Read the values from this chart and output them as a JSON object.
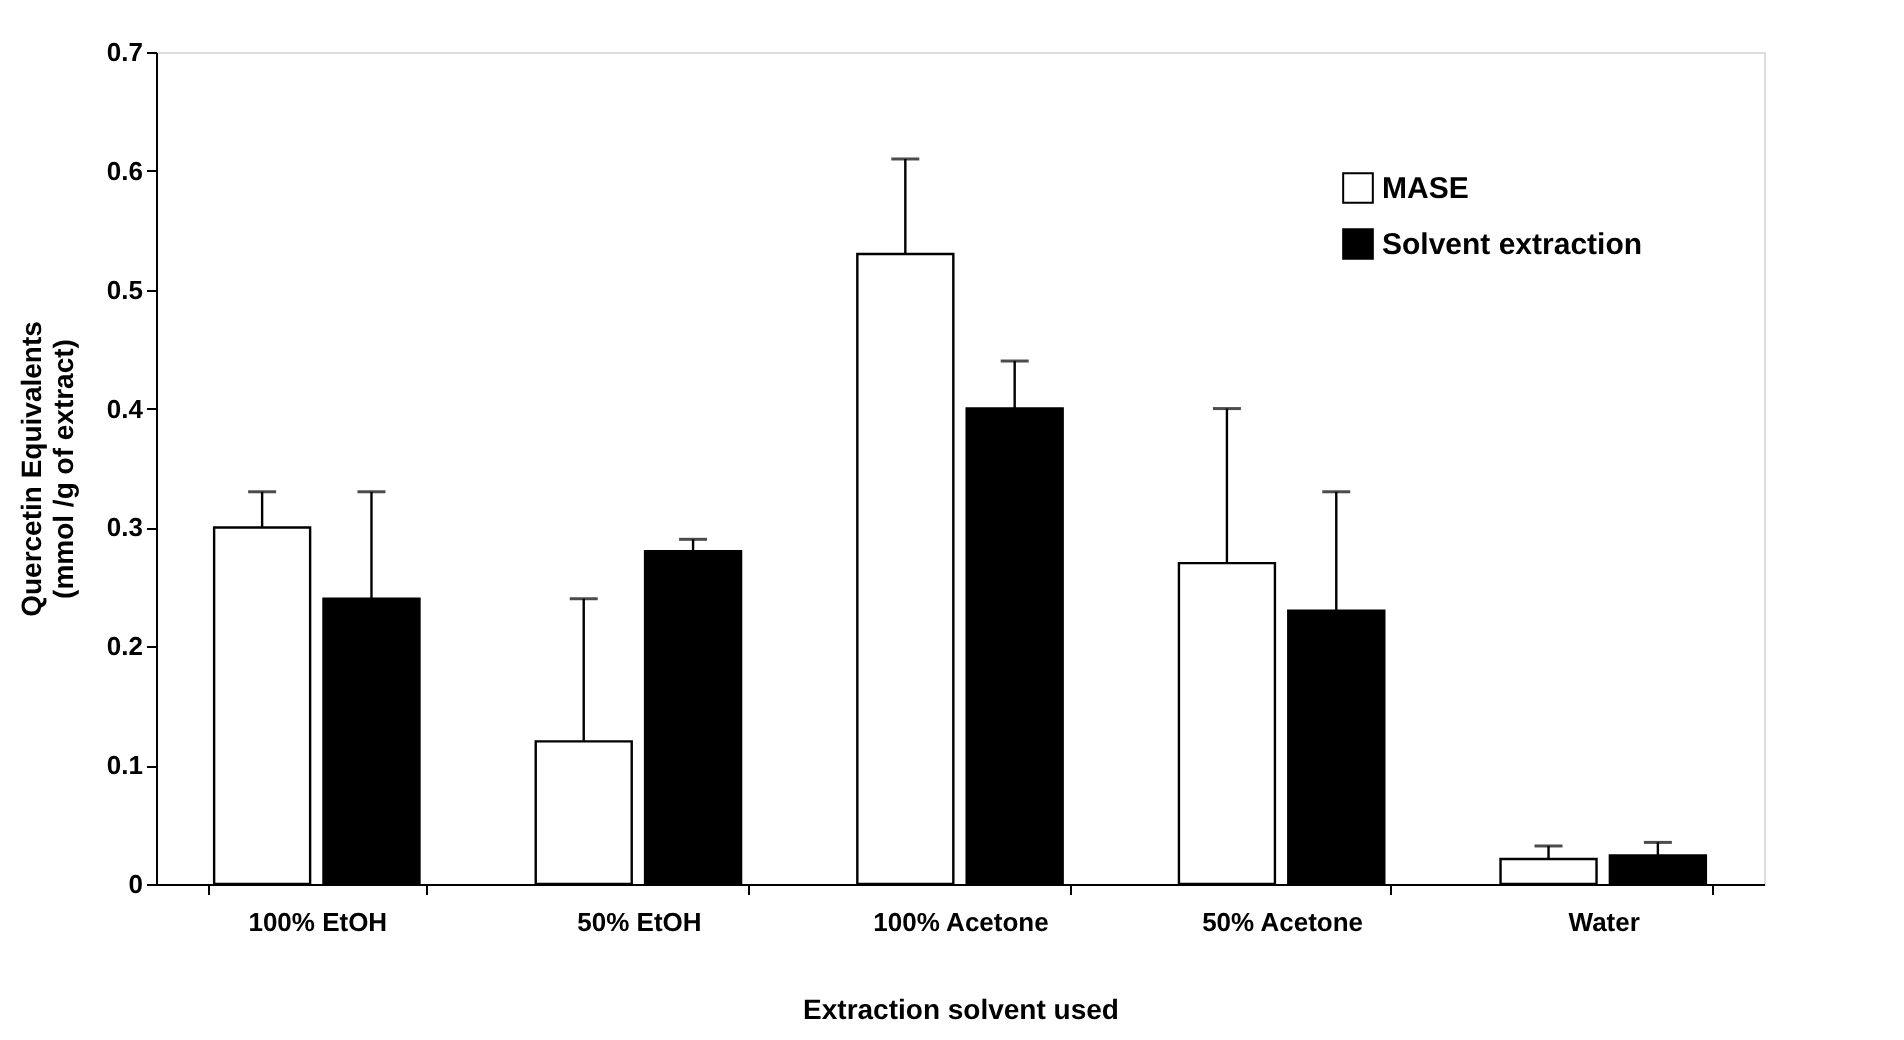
{
  "chart_data": {
    "type": "bar",
    "xlabel": "Extraction solvent used",
    "ylabel": "Quercetin Equivalents\n(mmol /g of extract)",
    "categories": [
      "100% EtOH",
      "50% EtOH",
      "100% Acetone",
      "50% Acetone",
      "Water"
    ],
    "series": [
      {
        "name": "MASE",
        "color": "#ffffff",
        "values": [
          0.3,
          0.12,
          0.53,
          0.27,
          0.021
        ],
        "errors": [
          [
            0.3,
            0.33
          ],
          [
            0.12,
            0.24
          ],
          [
            0.53,
            0.61
          ],
          [
            0.27,
            0.4
          ],
          [
            0.021,
            0.032
          ]
        ]
      },
      {
        "name": "Solvent extraction",
        "color": "#000000",
        "values": [
          0.24,
          0.28,
          0.4,
          0.23,
          0.024
        ],
        "errors": [
          [
            0.24,
            0.33
          ],
          [
            0.28,
            0.29
          ],
          [
            0.4,
            0.44
          ],
          [
            0.23,
            0.33
          ],
          [
            0.024,
            0.035
          ]
        ]
      }
    ],
    "ylim": [
      0,
      0.7
    ],
    "yticks": [
      0,
      0.1,
      0.2,
      0.3,
      0.4,
      0.5,
      0.6,
      0.7
    ],
    "grid": false,
    "legend": "top right"
  }
}
